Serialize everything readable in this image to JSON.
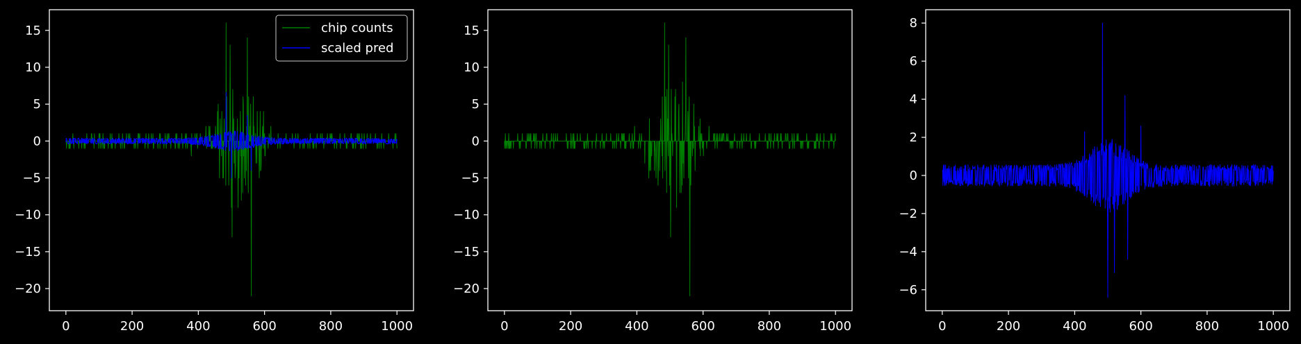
{
  "figure": {
    "background": "#000000",
    "foreground": "#ffffff"
  },
  "chart_data": [
    {
      "type": "line",
      "x_range": [
        0,
        1000
      ],
      "xlim": [
        -50,
        1050
      ],
      "ylim": [
        -23,
        17.8
      ],
      "xticks": [
        0,
        200,
        400,
        600,
        800,
        1000
      ],
      "yticks": [
        -20,
        -15,
        -10,
        -5,
        0,
        5,
        10,
        15
      ],
      "ytick_labels": [
        "−20",
        "−15",
        "−10",
        "−5",
        "0",
        "5",
        "10",
        "15"
      ],
      "grid": false,
      "legend": {
        "position": "top-right"
      },
      "series": [
        {
          "name": "chip counts",
          "color": "#008000",
          "profile": "counts",
          "spikes": [
            [
              484,
              16
            ],
            [
              496,
              13
            ],
            [
              504,
              7
            ],
            [
              548,
              14
            ],
            [
              560,
              -21
            ],
            [
              502,
              -13
            ],
            [
              520,
              -9
            ],
            [
              534,
              -7
            ]
          ]
        },
        {
          "name": "scaled pred",
          "color": "#0000ff",
          "profile": "pred_scaled",
          "spikes": [
            [
              484,
              6.6
            ],
            [
              500,
              -5
            ],
            [
              548,
              3.5
            ],
            [
              560,
              -4
            ]
          ]
        }
      ]
    },
    {
      "type": "line",
      "x_range": [
        0,
        1000
      ],
      "xlim": [
        -50,
        1050
      ],
      "ylim": [
        -23,
        17.8
      ],
      "xticks": [
        0,
        200,
        400,
        600,
        800,
        1000
      ],
      "yticks": [
        -20,
        -15,
        -10,
        -5,
        0,
        5,
        10,
        15
      ],
      "ytick_labels": [
        "−20",
        "−15",
        "−10",
        "−5",
        "0",
        "5",
        "10",
        "15"
      ],
      "grid": false,
      "legend": null,
      "series": [
        {
          "color": "#008000",
          "profile": "counts",
          "spikes": [
            [
              484,
              16
            ],
            [
              496,
              13
            ],
            [
              504,
              7
            ],
            [
              548,
              14
            ],
            [
              560,
              -21
            ],
            [
              502,
              -13
            ],
            [
              520,
              -9
            ],
            [
              534,
              -7
            ]
          ]
        }
      ]
    },
    {
      "type": "line",
      "x_range": [
        0,
        1000
      ],
      "xlim": [
        -50,
        1050
      ],
      "ylim": [
        -7.1,
        8.7
      ],
      "xticks": [
        0,
        200,
        400,
        600,
        800,
        1000
      ],
      "yticks": [
        -6,
        -4,
        -2,
        0,
        2,
        4,
        6,
        8
      ],
      "ytick_labels": [
        "−6",
        "−4",
        "−2",
        "0",
        "2",
        "4",
        "6",
        "8"
      ],
      "grid": false,
      "legend": null,
      "series": [
        {
          "color": "#0000ff",
          "profile": "pred",
          "spikes": [
            [
              484,
              8
            ],
            [
              500,
              -6.4
            ],
            [
              552,
              4.2
            ],
            [
              560,
              -4.4
            ],
            [
              520,
              -5.1
            ],
            [
              600,
              2.6
            ],
            [
              430,
              2.3
            ]
          ]
        }
      ]
    }
  ]
}
